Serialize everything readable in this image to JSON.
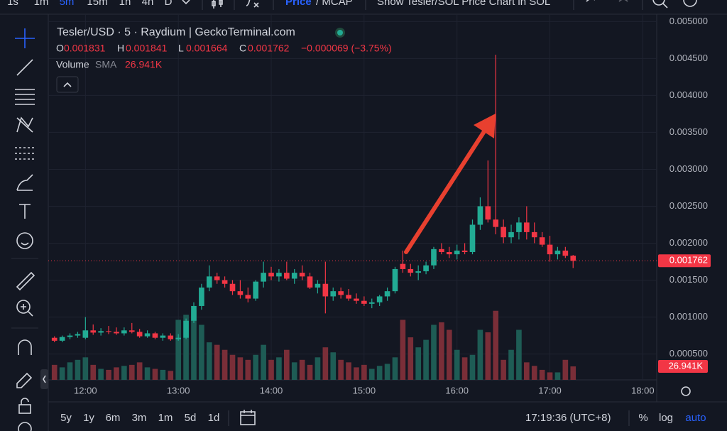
{
  "toolbar": {
    "intervals": [
      "1s",
      "1m",
      "5m",
      "15m",
      "1h",
      "4h",
      "D"
    ],
    "price": "Price",
    "mcap": "/ MCAP",
    "show_sol": "Show Tesler/SOL Price Chart in SOL"
  },
  "header": {
    "symbol": "Tesler/USD · 5 · Raydium | GeckoTerminal.com",
    "ohlc": [
      {
        "key": "O",
        "value": "0.001831"
      },
      {
        "key": "H",
        "value": "0.001841"
      },
      {
        "key": "L",
        "value": "0.001664"
      },
      {
        "key": "C",
        "value": "0.001762"
      }
    ],
    "change": "−0.000069 (−3.75%)",
    "volume_label": "Volume",
    "sma": "SMA",
    "volume_value": "26.941K"
  },
  "bottom_bar": {
    "ranges": [
      "5y",
      "1y",
      "6m",
      "3m",
      "1m",
      "5d",
      "1d"
    ],
    "clock": "17:19:36 (UTC+8)",
    "percent": "%",
    "log": "log",
    "auto": "auto"
  },
  "chart_data": {
    "type": "candlestick",
    "x": [
      700,
      705,
      710,
      715,
      720,
      725,
      730,
      735,
      740,
      745,
      750,
      755,
      760,
      765,
      770,
      775,
      780,
      785,
      790,
      795,
      800,
      805,
      810,
      815,
      820,
      825,
      830,
      835,
      840,
      845,
      850,
      855,
      860,
      865,
      870,
      875,
      880,
      885,
      890,
      895,
      900,
      905,
      910,
      915,
      920,
      925,
      930,
      935,
      940,
      945,
      950,
      955,
      960,
      965,
      970,
      975,
      980,
      985,
      990,
      995,
      1000,
      1005,
      1010,
      1015,
      1020,
      1025,
      1030,
      1035
    ],
    "open": [
      0.00072,
      0.00068,
      0.00073,
      0.00075,
      0.00072,
      0.00082,
      0.00079,
      0.00081,
      0.0008,
      0.00078,
      0.00082,
      0.0008,
      0.00074,
      0.00078,
      0.00072,
      0.00075,
      0.0007,
      0.00072,
      0.00095,
      0.00115,
      0.0014,
      0.00155,
      0.0015,
      0.00145,
      0.00135,
      0.0013,
      0.00125,
      0.00148,
      0.0016,
      0.00155,
      0.0016,
      0.00152,
      0.0016,
      0.00155,
      0.0014,
      0.00145,
      0.00128,
      0.00135,
      0.0013,
      0.00125,
      0.00122,
      0.00118,
      0.0012,
      0.00128,
      0.00135,
      0.00172,
      0.00165,
      0.0016,
      0.00162,
      0.0017,
      0.00192,
      0.00188,
      0.00185,
      0.0019,
      0.00188,
      0.00225,
      0.0025,
      0.00232,
      0.00222,
      0.00208,
      0.00215,
      0.00228,
      0.00215,
      0.00208,
      0.00198,
      0.00185,
      0.0019,
      0.001831
    ],
    "high": [
      0.00074,
      0.00075,
      0.00078,
      0.0008,
      0.001,
      0.0009,
      0.00085,
      0.00088,
      0.00086,
      0.00086,
      0.00092,
      0.00084,
      0.00082,
      0.0008,
      0.00078,
      0.00078,
      0.00077,
      0.00098,
      0.0012,
      0.00145,
      0.0017,
      0.0016,
      0.00155,
      0.0015,
      0.0015,
      0.0014,
      0.0015,
      0.00175,
      0.00168,
      0.00165,
      0.00175,
      0.00165,
      0.0017,
      0.0016,
      0.0015,
      0.00175,
      0.0014,
      0.0014,
      0.00138,
      0.00132,
      0.00128,
      0.00125,
      0.0013,
      0.0014,
      0.00168,
      0.0019,
      0.00172,
      0.0017,
      0.00175,
      0.00195,
      0.002,
      0.00195,
      0.00198,
      0.002,
      0.00232,
      0.00262,
      0.00312,
      0.00455,
      0.00232,
      0.00225,
      0.00235,
      0.0025,
      0.00228,
      0.00215,
      0.0021,
      0.00195,
      0.00195,
      0.001841
    ],
    "low": [
      0.00066,
      0.00066,
      0.0007,
      0.00072,
      0.0007,
      0.00076,
      0.00075,
      0.00077,
      0.00076,
      0.00075,
      0.00078,
      0.00072,
      0.00072,
      0.0007,
      0.00068,
      0.00068,
      0.00068,
      0.0007,
      0.00092,
      0.0011,
      0.00135,
      0.00145,
      0.0014,
      0.0013,
      0.00125,
      0.0012,
      0.00122,
      0.0014,
      0.0015,
      0.00148,
      0.0015,
      0.00145,
      0.0015,
      0.00138,
      0.00132,
      0.00105,
      0.00122,
      0.00125,
      0.00122,
      0.00118,
      0.00115,
      0.00112,
      0.00115,
      0.00122,
      0.00132,
      0.0016,
      0.00155,
      0.0015,
      0.00158,
      0.00165,
      0.00185,
      0.0018,
      0.00178,
      0.00185,
      0.00185,
      0.00218,
      0.00228,
      0.00212,
      0.002,
      0.002,
      0.00205,
      0.00205,
      0.002,
      0.00195,
      0.00175,
      0.00178,
      0.0018,
      0.001664
    ],
    "close": [
      0.00068,
      0.00073,
      0.00075,
      0.00077,
      0.00082,
      0.00079,
      0.00081,
      0.0008,
      0.00078,
      0.00082,
      0.0008,
      0.00074,
      0.00078,
      0.00072,
      0.00075,
      0.0007,
      0.00072,
      0.00095,
      0.00115,
      0.0014,
      0.00155,
      0.0015,
      0.00145,
      0.00135,
      0.0013,
      0.00125,
      0.00148,
      0.0016,
      0.00155,
      0.0016,
      0.00152,
      0.0016,
      0.00155,
      0.0014,
      0.00145,
      0.00128,
      0.00135,
      0.0013,
      0.00125,
      0.00122,
      0.00118,
      0.0012,
      0.00128,
      0.00135,
      0.00165,
      0.00165,
      0.0016,
      0.00162,
      0.0017,
      0.00192,
      0.00188,
      0.00185,
      0.0019,
      0.00188,
      0.00225,
      0.0025,
      0.00232,
      0.00222,
      0.00208,
      0.00215,
      0.00228,
      0.00215,
      0.00208,
      0.00198,
      0.00185,
      0.0019,
      0.00183,
      0.001762
    ],
    "volume": [
      30000,
      25000,
      35000,
      40000,
      45000,
      30000,
      22000,
      20000,
      25000,
      28000,
      30000,
      35000,
      25000,
      22000,
      20000,
      18000,
      120000,
      130000,
      140000,
      110000,
      75000,
      70000,
      60000,
      50000,
      45000,
      40000,
      50000,
      70000,
      40000,
      45000,
      60000,
      35000,
      40000,
      30000,
      45000,
      65000,
      55000,
      40000,
      35000,
      25000,
      30000,
      22000,
      28000,
      32000,
      45000,
      120000,
      85000,
      65000,
      80000,
      110000,
      115000,
      100000,
      60000,
      45000,
      50000,
      100000,
      95000,
      138000,
      40000,
      60000,
      100000,
      35000,
      28000,
      20000,
      15000,
      15000,
      40000,
      26941
    ],
    "up_color": "#22ab94",
    "down_color": "#f23645",
    "up_volume_color": "#1e5c55",
    "down_volume_color": "#7a2e38",
    "xlim": [
      696,
      1089
    ],
    "xticks": [
      {
        "value": 720,
        "label": "12:00"
      },
      {
        "value": 780,
        "label": "13:00"
      },
      {
        "value": 840,
        "label": "14:00"
      },
      {
        "value": 900,
        "label": "15:00"
      },
      {
        "value": 960,
        "label": "16:00"
      },
      {
        "value": 1020,
        "label": "17:00"
      },
      {
        "value": 1080,
        "label": "18:00"
      }
    ],
    "ylim": [
      0.00015,
      0.00509
    ],
    "yticks": [
      {
        "value": 0.0005,
        "label": "0.000500"
      },
      {
        "value": 0.001,
        "label": "0.001000"
      },
      {
        "value": 0.0015,
        "label": "0.001500"
      },
      {
        "value": 0.002,
        "label": "0.002000"
      },
      {
        "value": 0.0025,
        "label": "0.002500"
      },
      {
        "value": 0.003,
        "label": "0.003000"
      },
      {
        "value": 0.0035,
        "label": "0.003500"
      },
      {
        "value": 0.004,
        "label": "0.004000"
      },
      {
        "value": 0.0045,
        "label": "0.004500"
      },
      {
        "value": 0.005,
        "label": "0.005000"
      }
    ],
    "volume_lim": [
      0,
      383000
    ],
    "last_price": {
      "value": 0.001762,
      "label": "0.001762"
    },
    "last_volume": {
      "value": 26941,
      "label": "26.941K"
    },
    "grid": true
  }
}
